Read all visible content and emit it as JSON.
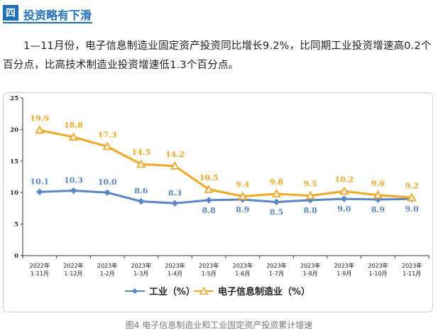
{
  "header": {
    "badge": "四",
    "title": "投资略有下滑"
  },
  "paragraph": "1—11月份，电子信息制造业固定资产投资同比增长9.2%，比同期工业投资增速高0.2个百分点，比高技术制造业投资增速低1.3个百分点。",
  "caption": "图4 电子信息制造业和工业固定资产投资累计增速",
  "colors": {
    "industry": "#5b86c5",
    "electronics": "#f5a623",
    "axis": "#333333"
  },
  "chart_data": {
    "type": "line",
    "title": "",
    "xlabel": "",
    "ylabel": "",
    "ylim": [
      0,
      25
    ],
    "yticks": [
      0,
      5,
      10,
      15,
      20,
      25
    ],
    "grid": false,
    "legend_position": "bottom",
    "categories": [
      [
        "2022年",
        "1-11月"
      ],
      [
        "2022年",
        "1-12月"
      ],
      [
        "2023年",
        "1-2月"
      ],
      [
        "2023年",
        "1-3月"
      ],
      [
        "2023年",
        "1-4月"
      ],
      [
        "2023年",
        "1-5月"
      ],
      [
        "2023年",
        "1-6月"
      ],
      [
        "2023年",
        "1-7月"
      ],
      [
        "2023年",
        "1-8月"
      ],
      [
        "2023年",
        "1-9月"
      ],
      [
        "2023年",
        "1-10月"
      ],
      [
        "2023年",
        "1-11月"
      ]
    ],
    "series": [
      {
        "name": "工业（%）",
        "key": "industry",
        "marker": "diamond",
        "values": [
          10.1,
          10.3,
          10.0,
          8.6,
          8.3,
          8.8,
          8.9,
          8.5,
          8.8,
          9.0,
          8.9,
          9.0
        ],
        "labels": [
          "10.1",
          "10.3",
          "10.0",
          "8.6",
          "8.3",
          "8.8",
          "8.9",
          "8.5",
          "8.8",
          "9.0",
          "8.9",
          "9.0"
        ]
      },
      {
        "name": "电子信息制造业（%）",
        "key": "electronics",
        "marker": "triangle",
        "values": [
          19.9,
          18.8,
          17.3,
          14.5,
          14.2,
          10.5,
          9.4,
          9.8,
          9.5,
          10.2,
          9.6,
          9.2
        ],
        "labels": [
          "19.9",
          "18.8",
          "17.3",
          "14.5",
          "14.2",
          "10.5",
          "9.4",
          "9.8",
          "9.5",
          "10.2",
          "9.6",
          "9.2"
        ]
      }
    ]
  }
}
